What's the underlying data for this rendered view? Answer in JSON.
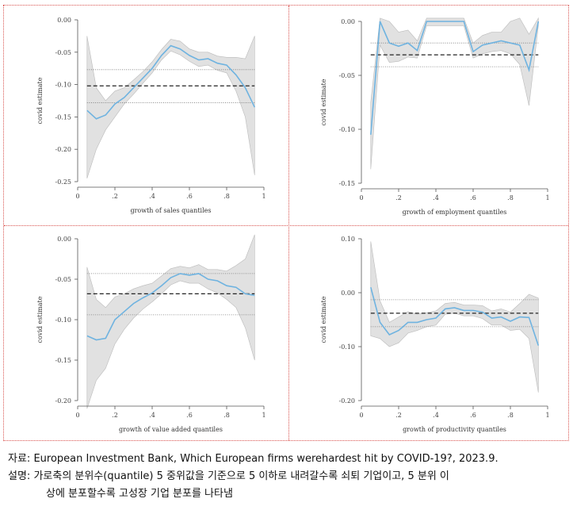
{
  "chart_data": [
    {
      "type": "line",
      "xlabel": "growth of sales quantiles",
      "ylabel": "covid estimate",
      "xlim": [
        0,
        1
      ],
      "ylim": [
        -0.25,
        0.0
      ],
      "xticks": [
        "0",
        ".2",
        ".4",
        ".6",
        ".8",
        "1"
      ],
      "xtick_values": [
        0,
        0.2,
        0.4,
        0.6,
        0.8,
        1.0
      ],
      "yticks": [
        "0.00",
        "-0.05",
        "-0.10",
        "-0.15",
        "-0.20",
        "-0.25"
      ],
      "ytick_values": [
        0.0,
        -0.05,
        -0.1,
        -0.15,
        -0.2,
        -0.25
      ],
      "series": [
        {
          "x": [
            0.05,
            0.1,
            0.15,
            0.2,
            0.25,
            0.3,
            0.35,
            0.4,
            0.45,
            0.5,
            0.55,
            0.6,
            0.65,
            0.7,
            0.75,
            0.8,
            0.85,
            0.9,
            0.95
          ],
          "y": [
            -0.14,
            -0.153,
            -0.147,
            -0.13,
            -0.12,
            -0.105,
            -0.09,
            -0.075,
            -0.055,
            -0.04,
            -0.045,
            -0.055,
            -0.062,
            -0.06,
            -0.067,
            -0.07,
            -0.085,
            -0.105,
            -0.135
          ],
          "ci_low": [
            -0.245,
            -0.2,
            -0.17,
            -0.15,
            -0.13,
            -0.115,
            -0.098,
            -0.082,
            -0.062,
            -0.048,
            -0.054,
            -0.064,
            -0.072,
            -0.07,
            -0.078,
            -0.082,
            -0.11,
            -0.15,
            -0.24
          ],
          "ci_high": [
            -0.025,
            -0.105,
            -0.125,
            -0.11,
            -0.105,
            -0.093,
            -0.08,
            -0.065,
            -0.046,
            -0.03,
            -0.033,
            -0.045,
            -0.05,
            -0.05,
            -0.056,
            -0.058,
            -0.058,
            -0.06,
            -0.025
          ]
        }
      ],
      "mean": -0.102,
      "mean_ci": [
        -0.128,
        -0.077
      ]
    },
    {
      "type": "line",
      "xlabel": "growth of employment quantiles",
      "ylabel": "covid estimate",
      "xlim": [
        0,
        1
      ],
      "ylim": [
        -0.15,
        0.0
      ],
      "xticks": [
        "0",
        ".2",
        ".4",
        ".6",
        ".8",
        "1"
      ],
      "xtick_values": [
        0,
        0.2,
        0.4,
        0.6,
        0.8,
        1.0
      ],
      "yticks": [
        "0.00",
        "-0.05",
        "-0.10",
        "-0.15"
      ],
      "ytick_values": [
        0.0,
        -0.05,
        -0.1,
        -0.15
      ],
      "series": [
        {
          "x": [
            0.05,
            0.1,
            0.15,
            0.2,
            0.25,
            0.3,
            0.35,
            0.4,
            0.45,
            0.5,
            0.55,
            0.6,
            0.65,
            0.7,
            0.75,
            0.8,
            0.85,
            0.9,
            0.95
          ],
          "y": [
            -0.105,
            0.0,
            -0.02,
            -0.023,
            -0.02,
            -0.027,
            0.0,
            0.0,
            0.0,
            0.0,
            0.0,
            -0.028,
            -0.022,
            -0.02,
            -0.018,
            -0.02,
            -0.022,
            -0.045,
            0.0
          ],
          "ci_low": [
            -0.137,
            -0.022,
            -0.038,
            -0.037,
            -0.033,
            -0.034,
            -0.004,
            -0.004,
            -0.004,
            -0.004,
            -0.004,
            -0.034,
            -0.03,
            -0.028,
            -0.027,
            -0.03,
            -0.04,
            -0.078,
            -0.004
          ],
          "ci_high": [
            -0.075,
            0.003,
            0.0,
            -0.01,
            -0.008,
            -0.018,
            0.003,
            0.003,
            0.003,
            0.003,
            0.003,
            -0.02,
            -0.013,
            -0.01,
            -0.01,
            0.0,
            0.003,
            -0.012,
            0.003
          ]
        }
      ],
      "mean": -0.031,
      "mean_ci": [
        -0.042,
        -0.02
      ]
    },
    {
      "type": "line",
      "xlabel": "growth of value added quantiles",
      "ylabel": "covid estimate",
      "xlim": [
        0,
        1
      ],
      "ylim": [
        -0.2,
        0.0
      ],
      "xticks": [
        "0",
        ".2",
        ".4",
        ".6",
        ".8",
        "1"
      ],
      "xtick_values": [
        0,
        0.2,
        0.4,
        0.6,
        0.8,
        1.0
      ],
      "yticks": [
        "0.00",
        "-0.05",
        "-0.10",
        "-0.15",
        "-0.20"
      ],
      "ytick_values": [
        0.0,
        -0.05,
        -0.1,
        -0.15,
        -0.2
      ],
      "series": [
        {
          "x": [
            0.05,
            0.1,
            0.15,
            0.2,
            0.25,
            0.3,
            0.35,
            0.4,
            0.45,
            0.5,
            0.55,
            0.6,
            0.65,
            0.7,
            0.75,
            0.8,
            0.85,
            0.9,
            0.95
          ],
          "y": [
            -0.12,
            -0.125,
            -0.123,
            -0.1,
            -0.09,
            -0.08,
            -0.073,
            -0.067,
            -0.058,
            -0.048,
            -0.043,
            -0.045,
            -0.043,
            -0.05,
            -0.052,
            -0.058,
            -0.06,
            -0.068,
            -0.07
          ],
          "ci_low": [
            -0.21,
            -0.175,
            -0.16,
            -0.13,
            -0.112,
            -0.098,
            -0.087,
            -0.078,
            -0.068,
            -0.057,
            -0.052,
            -0.055,
            -0.055,
            -0.062,
            -0.067,
            -0.075,
            -0.085,
            -0.11,
            -0.15
          ],
          "ci_high": [
            -0.035,
            -0.075,
            -0.085,
            -0.072,
            -0.068,
            -0.062,
            -0.058,
            -0.055,
            -0.046,
            -0.037,
            -0.034,
            -0.036,
            -0.032,
            -0.038,
            -0.038,
            -0.04,
            -0.033,
            -0.025,
            0.005
          ]
        }
      ],
      "mean": -0.068,
      "mean_ci": [
        -0.094,
        -0.043
      ]
    },
    {
      "type": "line",
      "xlabel": "growth of productivity quantiles",
      "ylabel": "covid estimate",
      "xlim": [
        0,
        1
      ],
      "ylim": [
        -0.2,
        0.1
      ],
      "xticks": [
        "0",
        ".2",
        ".4",
        ".6",
        ".8",
        "1"
      ],
      "xtick_values": [
        0,
        0.2,
        0.4,
        0.6,
        0.8,
        1.0
      ],
      "yticks": [
        "0.10",
        "0.00",
        "-0.10",
        "-0.20"
      ],
      "ytick_values": [
        0.1,
        0.0,
        -0.1,
        -0.2
      ],
      "series": [
        {
          "x": [
            0.05,
            0.1,
            0.15,
            0.2,
            0.25,
            0.3,
            0.35,
            0.4,
            0.45,
            0.5,
            0.55,
            0.6,
            0.65,
            0.7,
            0.75,
            0.8,
            0.85,
            0.9,
            0.95
          ],
          "y": [
            0.01,
            -0.055,
            -0.078,
            -0.07,
            -0.055,
            -0.055,
            -0.05,
            -0.047,
            -0.03,
            -0.028,
            -0.033,
            -0.033,
            -0.036,
            -0.047,
            -0.045,
            -0.053,
            -0.045,
            -0.046,
            -0.098
          ],
          "ci_low": [
            -0.08,
            -0.085,
            -0.1,
            -0.093,
            -0.075,
            -0.07,
            -0.063,
            -0.06,
            -0.04,
            -0.038,
            -0.043,
            -0.043,
            -0.048,
            -0.06,
            -0.06,
            -0.07,
            -0.068,
            -0.085,
            -0.185
          ],
          "ci_high": [
            0.095,
            -0.015,
            -0.055,
            -0.045,
            -0.035,
            -0.04,
            -0.037,
            -0.034,
            -0.02,
            -0.018,
            -0.023,
            -0.023,
            -0.024,
            -0.034,
            -0.03,
            -0.036,
            -0.02,
            -0.003,
            -0.01
          ]
        }
      ],
      "mean": -0.038,
      "mean_ci": [
        -0.063,
        -0.013
      ]
    }
  ],
  "colors": {
    "line": "#6fb3e0",
    "band": "#e1e1e1",
    "band_edge": "#bbbbbb",
    "mean": "#222222",
    "ci": "#777777",
    "axis": "#555555"
  },
  "caption": {
    "source_key": "자료:",
    "source_text": "European Investment Bank, Which European firms werehardest hit by COVID-19?, 2023.9.",
    "note_key": "설명:",
    "note_text_1": "가로축의 분위수(quantile) 5 중위값을 기준으로 5 이하로 내려갈수록 쇠퇴 기업이고, 5 분위 이",
    "note_text_2": "상에 분포할수록 고성장 기업 분포를 나타냄"
  }
}
